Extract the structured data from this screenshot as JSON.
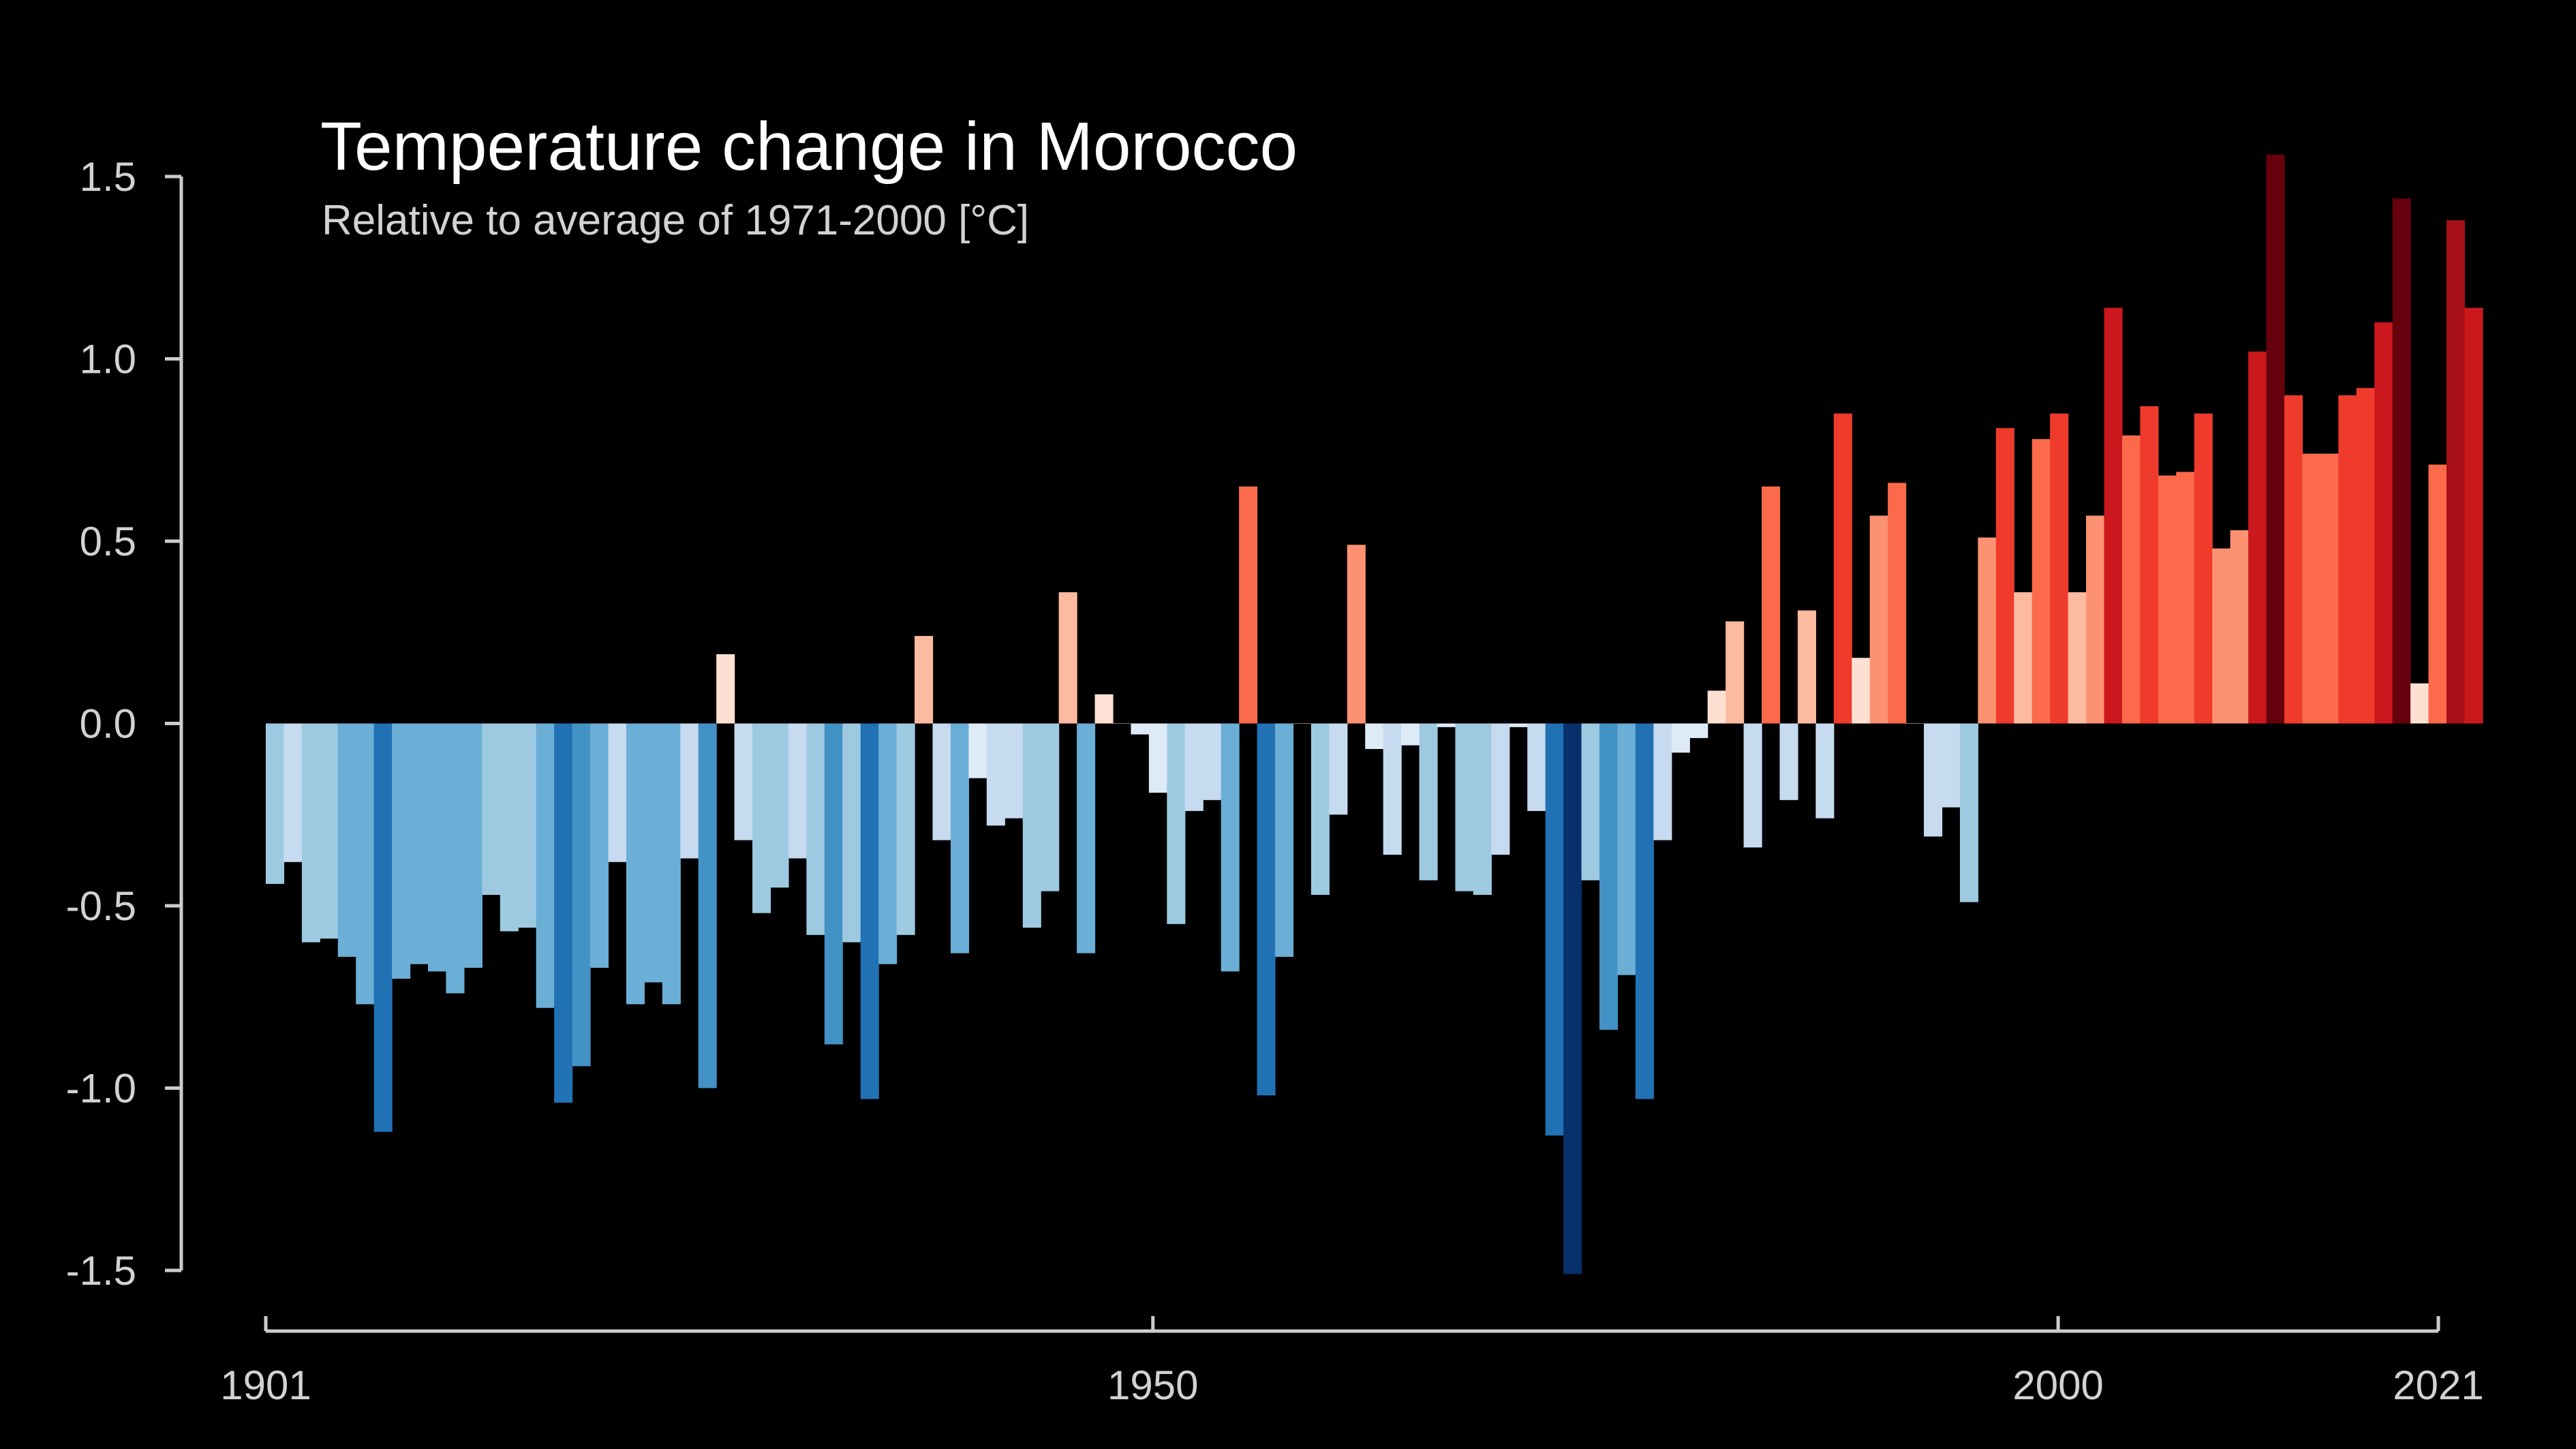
{
  "chart_data": {
    "type": "bar",
    "title": "Temperature change in Morocco",
    "subtitle": "Relative to average of 1971-2000  [°C]",
    "xlabel": "",
    "ylabel": "",
    "x_start": 1901,
    "x_end": 2021,
    "ylim": [
      -1.5,
      1.5
    ],
    "y_ticks": [
      "1.5",
      "1.0",
      "0.5",
      "0.0",
      "-0.5",
      "-1.0",
      "-1.5"
    ],
    "x_ticks": [
      "1901",
      "1950",
      "2000",
      "2021"
    ],
    "grid": false,
    "legend": "none",
    "colors": {
      "background": "#000000",
      "axis": "#cccccc",
      "text": "#ffffff",
      "subtext": "#d2d2d2"
    },
    "color_scale": [
      "#08306b",
      "#08519c",
      "#2171b5",
      "#4292c6",
      "#6baed6",
      "#9ecae1",
      "#c6dbef",
      "#deebf7",
      "#fee0d2",
      "#fcbba1",
      "#fc9272",
      "#fb6a4a",
      "#ef3b2c",
      "#cb181d",
      "#a50f15",
      "#67000d"
    ],
    "series": [
      {
        "values": [
          -0.44,
          -0.38,
          -0.6,
          -0.59,
          -0.64,
          -0.77,
          -1.12,
          -0.7,
          -0.66,
          -0.68,
          -0.74,
          -0.67,
          -0.47,
          -0.57,
          -0.56,
          -0.78,
          -1.04,
          -0.94,
          -0.67,
          -0.38,
          -0.77,
          -0.71,
          -0.77,
          -0.37,
          -1.0,
          0.19,
          -0.32,
          -0.52,
          -0.45,
          -0.37,
          -0.58,
          -0.88,
          -0.6,
          -1.03,
          -0.66,
          -0.58,
          0.24,
          -0.32,
          -0.63,
          -0.15,
          -0.28,
          -0.26,
          -0.56,
          -0.46,
          0.36,
          -0.63,
          0.08,
          0.0,
          -0.03,
          -0.19,
          -0.55,
          -0.24,
          -0.21,
          -0.68,
          0.65,
          -1.02,
          -0.64,
          0.0,
          -0.47,
          -0.25,
          0.49,
          -0.07,
          -0.36,
          -0.06,
          -0.43,
          -0.01,
          -0.46,
          -0.47,
          -0.36,
          -0.01,
          -0.24,
          -1.13,
          -1.51,
          -0.43,
          -0.84,
          -0.69,
          -1.03,
          -0.32,
          -0.08,
          -0.04,
          0.09,
          0.28,
          -0.34,
          0.65,
          -0.21,
          0.31,
          -0.26,
          0.85,
          0.18,
          0.57,
          0.66,
          0.0,
          -0.31,
          -0.23,
          -0.49,
          0.51,
          0.81,
          0.36,
          0.78,
          0.85,
          0.36,
          0.57,
          1.14,
          0.79,
          0.87,
          0.68,
          0.69,
          0.85,
          0.48,
          0.53,
          1.02,
          1.56,
          0.9,
          0.74,
          0.74,
          0.9,
          0.92,
          1.1,
          1.44,
          0.11,
          0.71,
          1.38,
          1.14
        ]
      }
    ]
  }
}
